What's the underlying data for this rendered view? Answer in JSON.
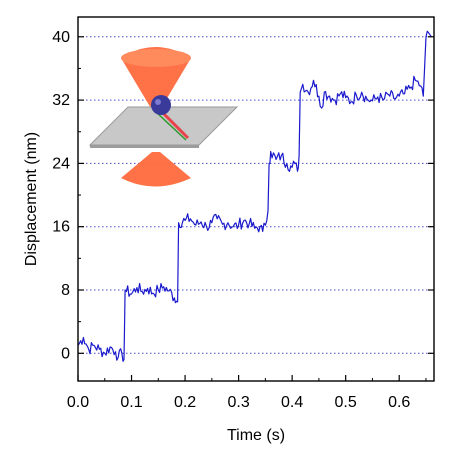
{
  "chart_data": {
    "type": "line",
    "title": "",
    "xlabel": "Time (s)",
    "ylabel": "Displacement (nm)",
    "xlim": [
      0.0,
      0.665
    ],
    "ylim": [
      -3.5,
      42.5
    ],
    "x_ticks": [
      0.0,
      0.1,
      0.2,
      0.3,
      0.4,
      0.5,
      0.6
    ],
    "x_tick_labels": [
      "0.0",
      "0.1",
      "0.2",
      "0.3",
      "0.4",
      "0.5",
      "0.6"
    ],
    "y_ticks": [
      0,
      8,
      16,
      24,
      32,
      40
    ],
    "y_tick_labels": [
      "0",
      "8",
      "16",
      "24",
      "32",
      "40"
    ],
    "grid": "horizontal dotted lines at major y ticks",
    "legend": "none",
    "inset": "optical trap schematic (two focused laser cones around a bead on a surface)",
    "series": [
      {
        "color": "#1a1acc",
        "x": [
          0.0,
          0.01,
          0.02,
          0.03,
          0.04,
          0.05,
          0.06,
          0.07,
          0.075,
          0.082,
          0.086,
          0.088,
          0.1,
          0.11,
          0.12,
          0.13,
          0.14,
          0.15,
          0.16,
          0.17,
          0.18,
          0.186,
          0.188,
          0.2,
          0.21,
          0.22,
          0.23,
          0.24,
          0.25,
          0.26,
          0.27,
          0.28,
          0.29,
          0.3,
          0.31,
          0.32,
          0.33,
          0.34,
          0.345,
          0.35,
          0.355,
          0.357,
          0.36,
          0.37,
          0.38,
          0.39,
          0.4,
          0.405,
          0.41,
          0.413,
          0.415,
          0.42,
          0.43,
          0.44,
          0.45,
          0.455,
          0.46,
          0.47,
          0.48,
          0.49,
          0.5,
          0.51,
          0.52,
          0.53,
          0.54,
          0.55,
          0.56,
          0.57,
          0.58,
          0.59,
          0.6,
          0.61,
          0.62,
          0.63,
          0.64,
          0.645,
          0.65,
          0.655,
          0.66
        ],
        "y": [
          1.0,
          2.0,
          0.5,
          1.0,
          0.5,
          0.0,
          0.8,
          0.2,
          -0.5,
          0.0,
          -0.8,
          8.0,
          7.5,
          8.3,
          7.8,
          8.2,
          7.6,
          8.0,
          8.4,
          7.9,
          7.0,
          6.5,
          16.5,
          16.8,
          17.0,
          16.2,
          16.6,
          16.0,
          16.5,
          17.0,
          16.3,
          16.5,
          16.0,
          16.2,
          16.8,
          16.4,
          15.8,
          16.0,
          15.4,
          16.2,
          18.0,
          24.0,
          25.5,
          24.5,
          25.0,
          24.0,
          23.5,
          24.0,
          23.0,
          25.0,
          33.0,
          34.0,
          33.0,
          34.5,
          32.5,
          31.0,
          33.0,
          32.5,
          32.0,
          32.8,
          32.3,
          31.8,
          32.6,
          33.0,
          32.1,
          31.9,
          32.4,
          32.0,
          32.7,
          32.2,
          32.5,
          32.8,
          33.5,
          34.5,
          33.8,
          32.5,
          40.0,
          40.5,
          40.0
        ]
      }
    ]
  }
}
